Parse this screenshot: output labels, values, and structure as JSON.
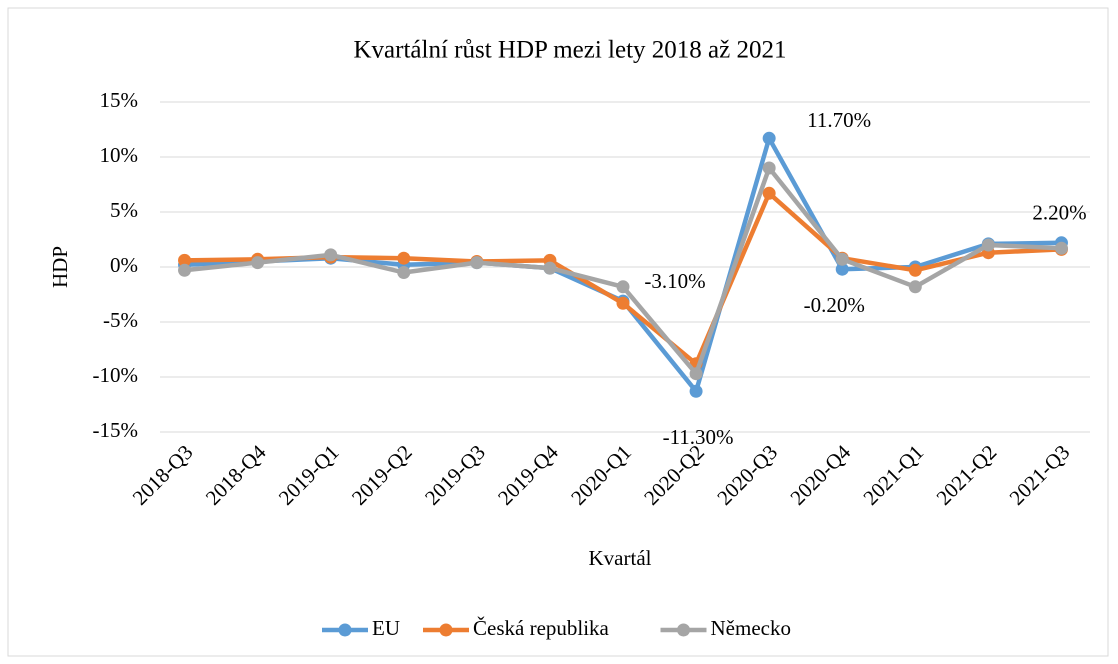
{
  "chart_data": {
    "type": "line",
    "title": "Kvartální růst HDP mezi lety 2018 až 2021",
    "xlabel": "Kvartál",
    "ylabel": "HDP",
    "categories": [
      "2018-Q3",
      "2018-Q4",
      "2019-Q1",
      "2019-Q2",
      "2019-Q3",
      "2019-Q4",
      "2020-Q1",
      "2020-Q2",
      "2020-Q3",
      "2020-Q4",
      "2021-Q1",
      "2021-Q2",
      "2021-Q3"
    ],
    "series": [
      {
        "name": "EU",
        "color": "#5b9bd5",
        "values": [
          0.2,
          0.5,
          0.8,
          0.2,
          0.4,
          -0.1,
          -3.1,
          -11.3,
          11.7,
          -0.2,
          0.0,
          2.1,
          2.2
        ],
        "value_labels": [
          null,
          null,
          null,
          null,
          null,
          null,
          "-3.10%",
          "-11.30%",
          "11.70%",
          "-0.20%",
          null,
          null,
          "2.20%"
        ]
      },
      {
        "name": "Česká republika",
        "color": "#ed7d31",
        "values": [
          0.6,
          0.7,
          0.9,
          0.8,
          0.5,
          0.6,
          -3.3,
          -8.8,
          6.7,
          0.8,
          -0.3,
          1.3,
          1.6
        ]
      },
      {
        "name": "Německo",
        "color": "#a5a5a5",
        "values": [
          -0.3,
          0.4,
          1.1,
          -0.5,
          0.4,
          -0.1,
          -1.8,
          -9.7,
          9.0,
          0.7,
          -1.8,
          2.0,
          1.7
        ]
      }
    ],
    "ylim": [
      -15,
      15
    ],
    "yticks": [
      {
        "value": -15,
        "label": "-15%"
      },
      {
        "value": -10,
        "label": "-10%"
      },
      {
        "value": -5,
        "label": "-5%"
      },
      {
        "value": 0,
        "label": "0%"
      },
      {
        "value": 5,
        "label": "5%"
      },
      {
        "value": 10,
        "label": "10%"
      },
      {
        "value": 15,
        "label": "15%"
      }
    ],
    "grid": true,
    "legend": "bottom"
  }
}
